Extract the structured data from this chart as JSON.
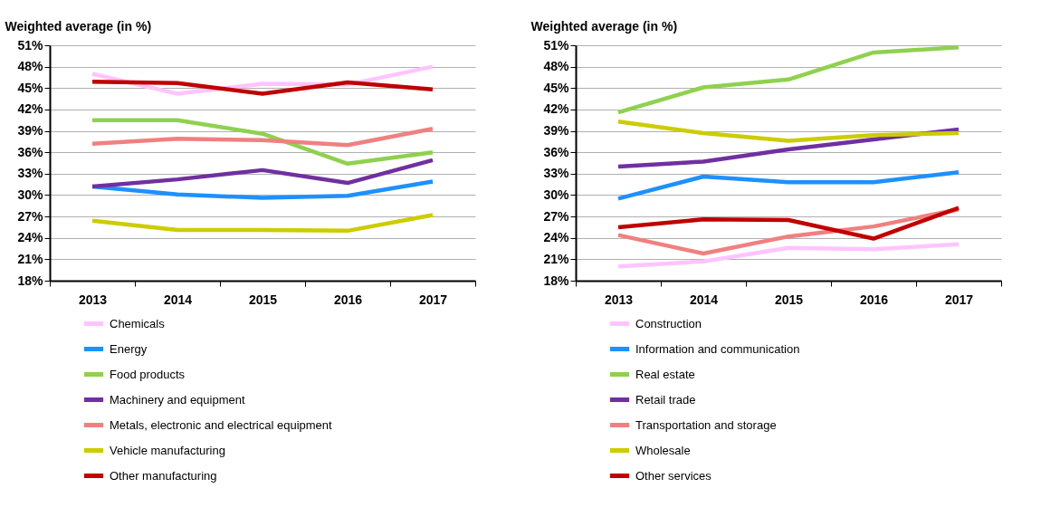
{
  "chart_data": [
    {
      "type": "line",
      "ylabel": "Weighted average (in %)",
      "categories": [
        "2013",
        "2014",
        "2015",
        "2016",
        "2017"
      ],
      "ylim": [
        18,
        51
      ],
      "yticks": [
        {
          "value": 18,
          "label": "18%"
        },
        {
          "value": 21,
          "label": "21%"
        },
        {
          "value": 24,
          "label": "24%"
        },
        {
          "value": 27,
          "label": "27%"
        },
        {
          "value": 30,
          "label": "30%"
        },
        {
          "value": 33,
          "label": "33%"
        },
        {
          "value": 36,
          "label": "36%"
        },
        {
          "value": 39,
          "label": "39%"
        },
        {
          "value": 42,
          "label": "42%"
        },
        {
          "value": 45,
          "label": "45%"
        },
        {
          "value": 48,
          "label": "48%"
        },
        {
          "value": 51,
          "label": "51%"
        }
      ],
      "grid": "y",
      "legend": "bottom",
      "marker": "none",
      "line_style": "solid",
      "series": [
        {
          "name": "Chemicals",
          "color": "#ffc4ff",
          "values": [
            47.0,
            44.2,
            45.6,
            45.5,
            48.0
          ]
        },
        {
          "name": "Energy",
          "color": "#1e90ff",
          "values": [
            31.2,
            30.1,
            29.6,
            29.9,
            31.9
          ]
        },
        {
          "name": "Food products",
          "color": "#8fd14f",
          "values": [
            40.5,
            40.5,
            38.6,
            34.4,
            36.0
          ]
        },
        {
          "name": "Machinery and equipment",
          "color": "#7030a0",
          "values": [
            31.2,
            32.2,
            33.5,
            31.7,
            34.9
          ]
        },
        {
          "name": "Metals, electronic and electrical equipment",
          "color": "#f08080",
          "values": [
            37.2,
            37.9,
            37.7,
            37.0,
            39.3
          ]
        },
        {
          "name": "Vehicle manufacturing",
          "color": "#cccc00",
          "values": [
            26.4,
            25.1,
            25.1,
            25.0,
            27.2
          ]
        },
        {
          "name": "Other manufacturing",
          "color": "#c00000",
          "values": [
            45.9,
            45.7,
            44.2,
            45.8,
            44.8
          ]
        }
      ]
    },
    {
      "type": "line",
      "ylabel": "Weighted average (in %)",
      "categories": [
        "2013",
        "2014",
        "2015",
        "2016",
        "2017"
      ],
      "ylim": [
        18,
        51
      ],
      "yticks": [
        {
          "value": 18,
          "label": "18%"
        },
        {
          "value": 21,
          "label": "21%"
        },
        {
          "value": 24,
          "label": "24%"
        },
        {
          "value": 27,
          "label": "27%"
        },
        {
          "value": 30,
          "label": "30%"
        },
        {
          "value": 33,
          "label": "33%"
        },
        {
          "value": 36,
          "label": "36%"
        },
        {
          "value": 39,
          "label": "39%"
        },
        {
          "value": 42,
          "label": "42%"
        },
        {
          "value": 45,
          "label": "45%"
        },
        {
          "value": 48,
          "label": "48%"
        },
        {
          "value": 51,
          "label": "51%"
        }
      ],
      "grid": "y",
      "legend": "bottom",
      "marker": "none",
      "line_style": "solid",
      "series": [
        {
          "name": "Construction",
          "color": "#ffc4ff",
          "values": [
            20.0,
            20.7,
            22.6,
            22.4,
            23.1
          ]
        },
        {
          "name": "Information and communication",
          "color": "#1e90ff",
          "values": [
            29.5,
            32.6,
            31.8,
            31.8,
            33.2
          ]
        },
        {
          "name": "Real estate",
          "color": "#8fd14f",
          "values": [
            41.6,
            45.1,
            46.2,
            50.0,
            50.7
          ]
        },
        {
          "name": "Retail trade",
          "color": "#7030a0",
          "values": [
            34.0,
            34.7,
            36.4,
            37.8,
            39.2
          ]
        },
        {
          "name": "Transportation and storage",
          "color": "#f08080",
          "values": [
            24.4,
            21.8,
            24.2,
            25.6,
            28.0
          ]
        },
        {
          "name": "Wholesale",
          "color": "#cccc00",
          "values": [
            40.3,
            38.7,
            37.6,
            38.4,
            38.7
          ]
        },
        {
          "name": "Other services",
          "color": "#c00000",
          "values": [
            25.5,
            26.6,
            26.5,
            23.9,
            28.2
          ]
        }
      ]
    }
  ]
}
